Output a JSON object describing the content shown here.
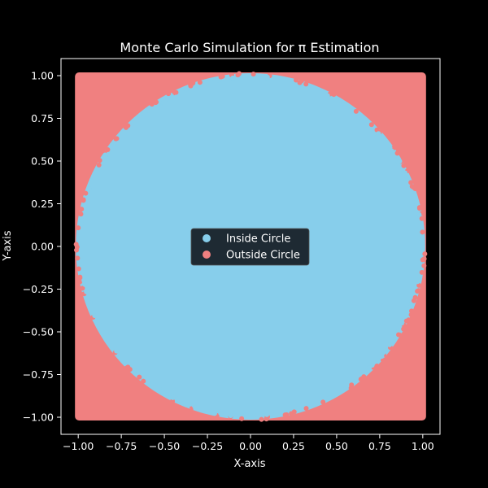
{
  "chart_data": {
    "type": "scatter",
    "title": "Monte Carlo Simulation for π Estimation",
    "xlabel": "X-axis",
    "ylabel": "Y-axis",
    "xlim": [
      -1.1,
      1.1
    ],
    "ylim": [
      -1.1,
      1.1
    ],
    "aspect": "equal",
    "grid": false,
    "background_color": "#000000",
    "axes_color": "#ffffff",
    "x_ticks": [
      "−1.00",
      "−0.75",
      "−0.50",
      "−0.25",
      "0.00",
      "0.25",
      "0.50",
      "0.75",
      "1.00"
    ],
    "x_tick_values": [
      -1.0,
      -0.75,
      -0.5,
      -0.25,
      0.0,
      0.25,
      0.5,
      0.75,
      1.0
    ],
    "y_ticks": [
      "−1.00",
      "−0.75",
      "−0.50",
      "−0.25",
      "0.00",
      "0.25",
      "0.50",
      "0.75",
      "1.00"
    ],
    "y_tick_values": [
      -1.0,
      -0.75,
      -0.5,
      -0.25,
      0.0,
      0.25,
      0.5,
      0.75,
      1.0
    ],
    "legend": {
      "placement": "center",
      "background": "#1e2a33",
      "entries": [
        {
          "label": "Inside Circle",
          "color": "#87ceeb"
        },
        {
          "label": "Outside Circle",
          "color": "#f08080"
        }
      ]
    },
    "series": [
      {
        "name": "Inside Circle",
        "color": "#87ceeb",
        "region": "x^2 + y^2 <= 1",
        "x_range": [
          -1.0,
          1.0
        ],
        "y_range": [
          -1.0,
          1.0
        ]
      },
      {
        "name": "Outside Circle",
        "color": "#f08080",
        "region": "x^2 + y^2 > 1",
        "x_range": [
          -1.0,
          1.0
        ],
        "y_range": [
          -1.0,
          1.0
        ]
      }
    ]
  }
}
